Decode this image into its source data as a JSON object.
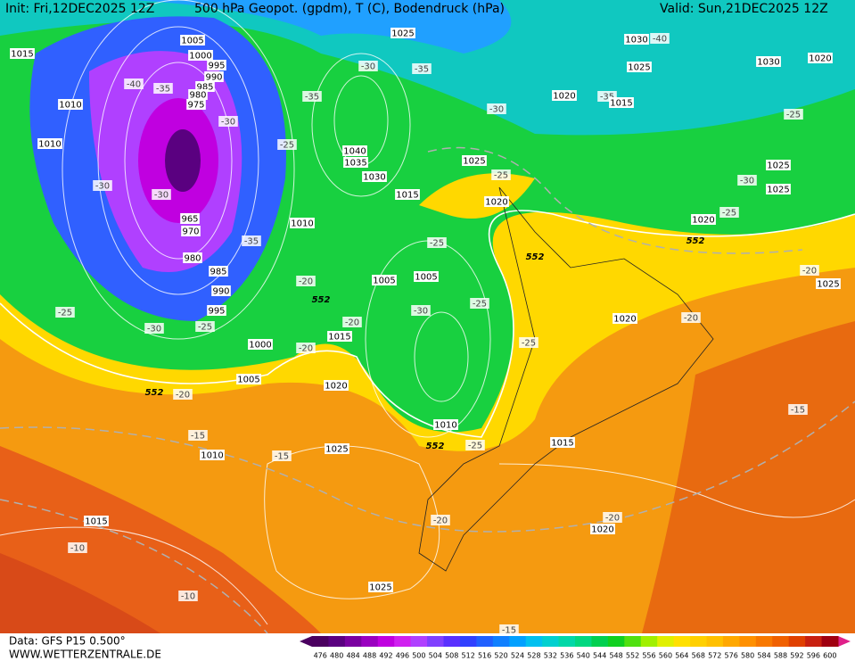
{
  "header": {
    "init": "Init: Fri,12DEC2025 12Z",
    "title": "500 hPa Geopot. (gpdm), T (C), Bodendruck (hPa)",
    "valid": "Valid: Sun,21DEC2025 12Z"
  },
  "footer": {
    "source": "Data: GFS P15 0.500°",
    "website": "WWW.WETTERZENTRALE.DE"
  },
  "pressure_labels": [
    "1005",
    "1015",
    "1000",
    "995",
    "990",
    "985",
    "980",
    "975",
    "1010",
    "1010",
    "965",
    "970",
    "980",
    "985",
    "990",
    "995",
    "1000",
    "1005",
    "1025",
    "1030",
    "1025",
    "1030",
    "1020",
    "1020",
    "1015",
    "1040",
    "1035",
    "1030",
    "1025",
    "1015",
    "1020",
    "1025",
    "1025",
    "1020",
    "1010",
    "1005",
    "1005",
    "1015",
    "1020",
    "1020",
    "1010",
    "1015",
    "1025",
    "1010",
    "1015",
    "1020",
    "1025",
    "1025"
  ],
  "temperature_labels": [
    "-40",
    "-35",
    "-30",
    "-30",
    "-30",
    "-35",
    "-25",
    "-30",
    "-25",
    "-20",
    "-20",
    "-20",
    "-20",
    "-15",
    "-15",
    "-10",
    "-10",
    "-30",
    "-35",
    "-35",
    "-30",
    "-25",
    "-25",
    "-25",
    "-30",
    "-25",
    "-25",
    "-25",
    "-20",
    "-20",
    "-20",
    "-20",
    "-15",
    "-25",
    "-30",
    "-25",
    "-35",
    "-40",
    "-15"
  ],
  "geopotential_labels": [
    "552",
    "552",
    "552",
    "552",
    "552"
  ],
  "colorbar": {
    "labels": [
      476,
      480,
      484,
      488,
      492,
      496,
      500,
      504,
      508,
      512,
      516,
      520,
      524,
      528,
      532,
      536,
      540,
      544,
      548,
      552,
      556,
      560,
      564,
      568,
      572,
      576,
      580,
      584,
      588,
      592,
      596,
      600
    ],
    "colors": [
      "#4b0060",
      "#5a0080",
      "#7a00a0",
      "#9a00c0",
      "#c000e0",
      "#d020f0",
      "#b040ff",
      "#8040ff",
      "#5a30ff",
      "#3040ff",
      "#2060ff",
      "#1080ff",
      "#00a0ff",
      "#00c0f0",
      "#00d0d0",
      "#00d8a8",
      "#00d880",
      "#00d050",
      "#10d020",
      "#50e010",
      "#a0f000",
      "#e0f000",
      "#ffe000",
      "#ffd000",
      "#ffc000",
      "#ffa800",
      "#ff9000",
      "#f87800",
      "#f06000",
      "#e04000",
      "#c82010",
      "#a00010"
    ]
  }
}
